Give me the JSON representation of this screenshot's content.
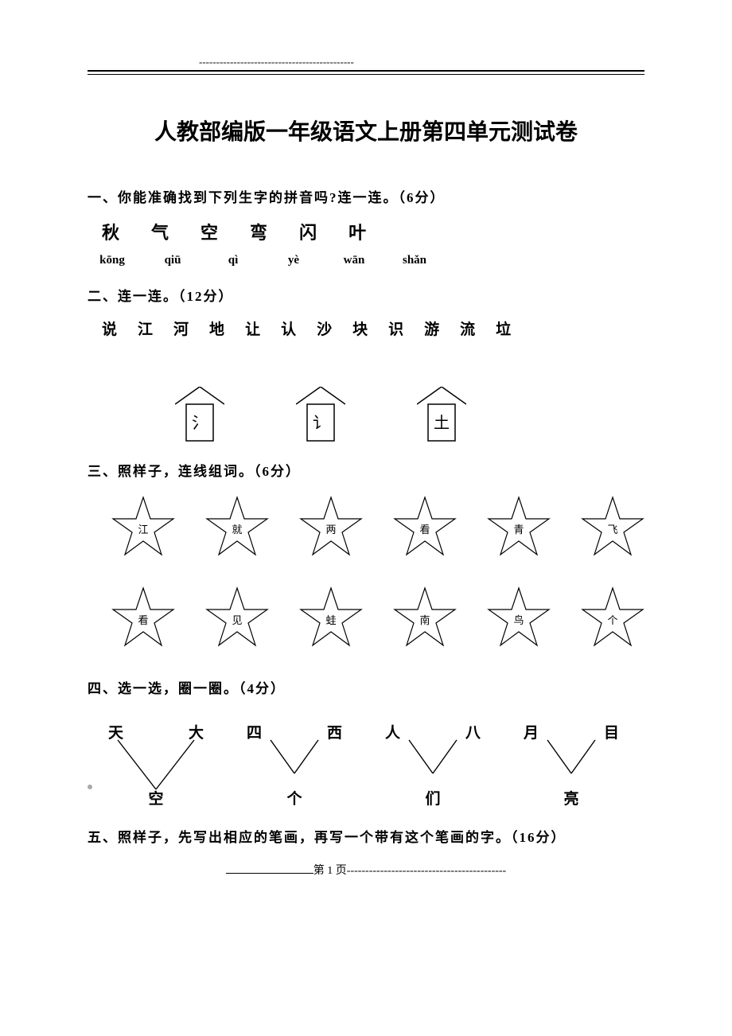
{
  "colors": {
    "text": "#000000",
    "background": "#ffffff",
    "grey_dot": "#a9a9a9"
  },
  "header": {
    "dashes": "---------------------------------------------"
  },
  "title": "人教部编版一年级语文上册第四单元测试卷",
  "sections": {
    "s1": {
      "heading": "一、你能准确找到下列生字的拼音吗?连一连。（6分）",
      "chars": [
        "秋",
        "气",
        "空",
        "弯",
        "闪",
        "叶"
      ],
      "pinyin": [
        "kōng",
        "qiū",
        "qì",
        "yè",
        "wān",
        "shǎn"
      ]
    },
    "s2": {
      "heading": "二、连一连。（12分）",
      "chars": [
        "说",
        "江",
        "河",
        "地",
        "让",
        "认",
        "沙",
        "块",
        "识",
        "游",
        "流",
        "垃"
      ],
      "houses": [
        "氵",
        "讠",
        "土"
      ]
    },
    "s3": {
      "heading": "三、照样子，连线组词。（6分）",
      "row1": [
        "江",
        "就",
        "两",
        "看",
        "青",
        "飞"
      ],
      "row2": [
        "看",
        "见",
        "蛙",
        "南",
        "鸟",
        "个"
      ]
    },
    "s4": {
      "heading": "四、选一选，圈一圈。（4分）",
      "groups": [
        {
          "top": [
            "天",
            "大"
          ],
          "bottom": "空",
          "lines": "both"
        },
        {
          "top": [
            "四",
            "西"
          ],
          "bottom": "个",
          "lines": "v"
        },
        {
          "top": [
            "人",
            "八"
          ],
          "bottom": "们",
          "lines": "v"
        },
        {
          "top": [
            "月",
            "目"
          ],
          "bottom": "亮",
          "lines": "v"
        }
      ]
    },
    "s5": {
      "heading": "五、照样子，先写出相应的笔画，再写一个带有这个笔画的字。（16分）"
    }
  },
  "footer": {
    "page_label": "第 1 页",
    "dashes": "-------------------------------------------"
  }
}
